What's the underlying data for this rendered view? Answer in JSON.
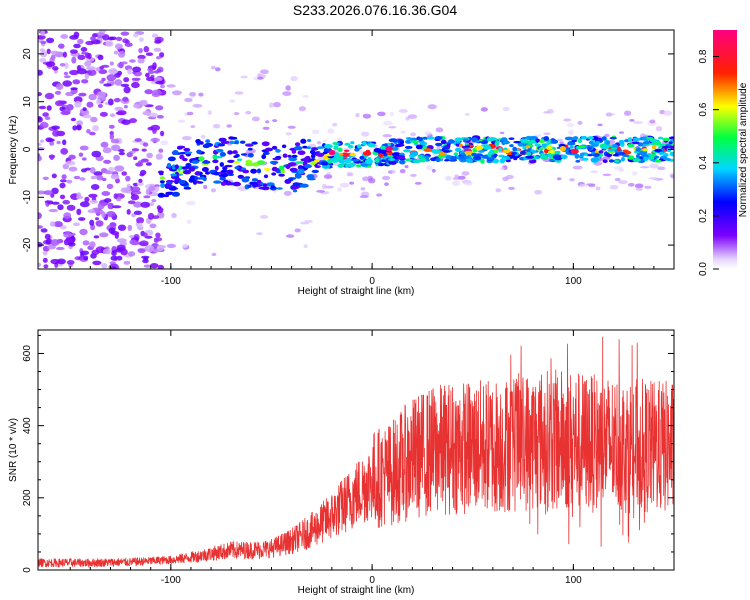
{
  "figure": {
    "title": "S233.2026.076.16.36.G04"
  },
  "chart_data": [
    {
      "type": "heatmap",
      "name": "spectrogram",
      "xlabel": "Height of straight line (km)",
      "ylabel": "Frequency (Hz)",
      "xlim": [
        -166,
        150
      ],
      "ylim": [
        -25,
        25
      ],
      "xticks": [
        -100,
        0,
        100
      ],
      "yticks": [
        -20,
        -10,
        0,
        10,
        20
      ],
      "colorbar": {
        "label": "Normalized spectral amplitude",
        "range": [
          0,
          0.9
        ],
        "ticks": [
          0.0,
          0.2,
          0.4,
          0.6,
          0.8
        ]
      },
      "ridge": {
        "description_points_x": [
          -100,
          -80,
          -60,
          -40,
          -20,
          0,
          20,
          40,
          60,
          80,
          100,
          120,
          150
        ],
        "description_points_freq": [
          -5,
          -2,
          -3,
          -4,
          -1,
          -1,
          0,
          0,
          0,
          0,
          0,
          0,
          0
        ]
      }
    },
    {
      "type": "line",
      "name": "snr",
      "xlabel": "Height of straight line (km)",
      "ylabel": "SNR (10 * v/v)",
      "xlim": [
        -166,
        150
      ],
      "ylim": [
        0,
        665
      ],
      "xticks": [
        -100,
        0,
        100
      ],
      "yticks": [
        0,
        200,
        400,
        600
      ],
      "series": [
        {
          "name": "SNR",
          "color": "#e83232",
          "x": [
            -166,
            -140,
            -120,
            -100,
            -90,
            -80,
            -70,
            -60,
            -50,
            -40,
            -30,
            -20,
            -10,
            0,
            10,
            20,
            30,
            40,
            50,
            60,
            70,
            80,
            90,
            100,
            110,
            120,
            130,
            140,
            150
          ],
          "y": [
            20,
            20,
            22,
            28,
            35,
            45,
            55,
            55,
            60,
            80,
            110,
            150,
            200,
            250,
            270,
            310,
            330,
            340,
            340,
            345,
            350,
            360,
            360,
            360,
            350,
            350,
            345,
            340,
            340
          ]
        }
      ]
    }
  ]
}
